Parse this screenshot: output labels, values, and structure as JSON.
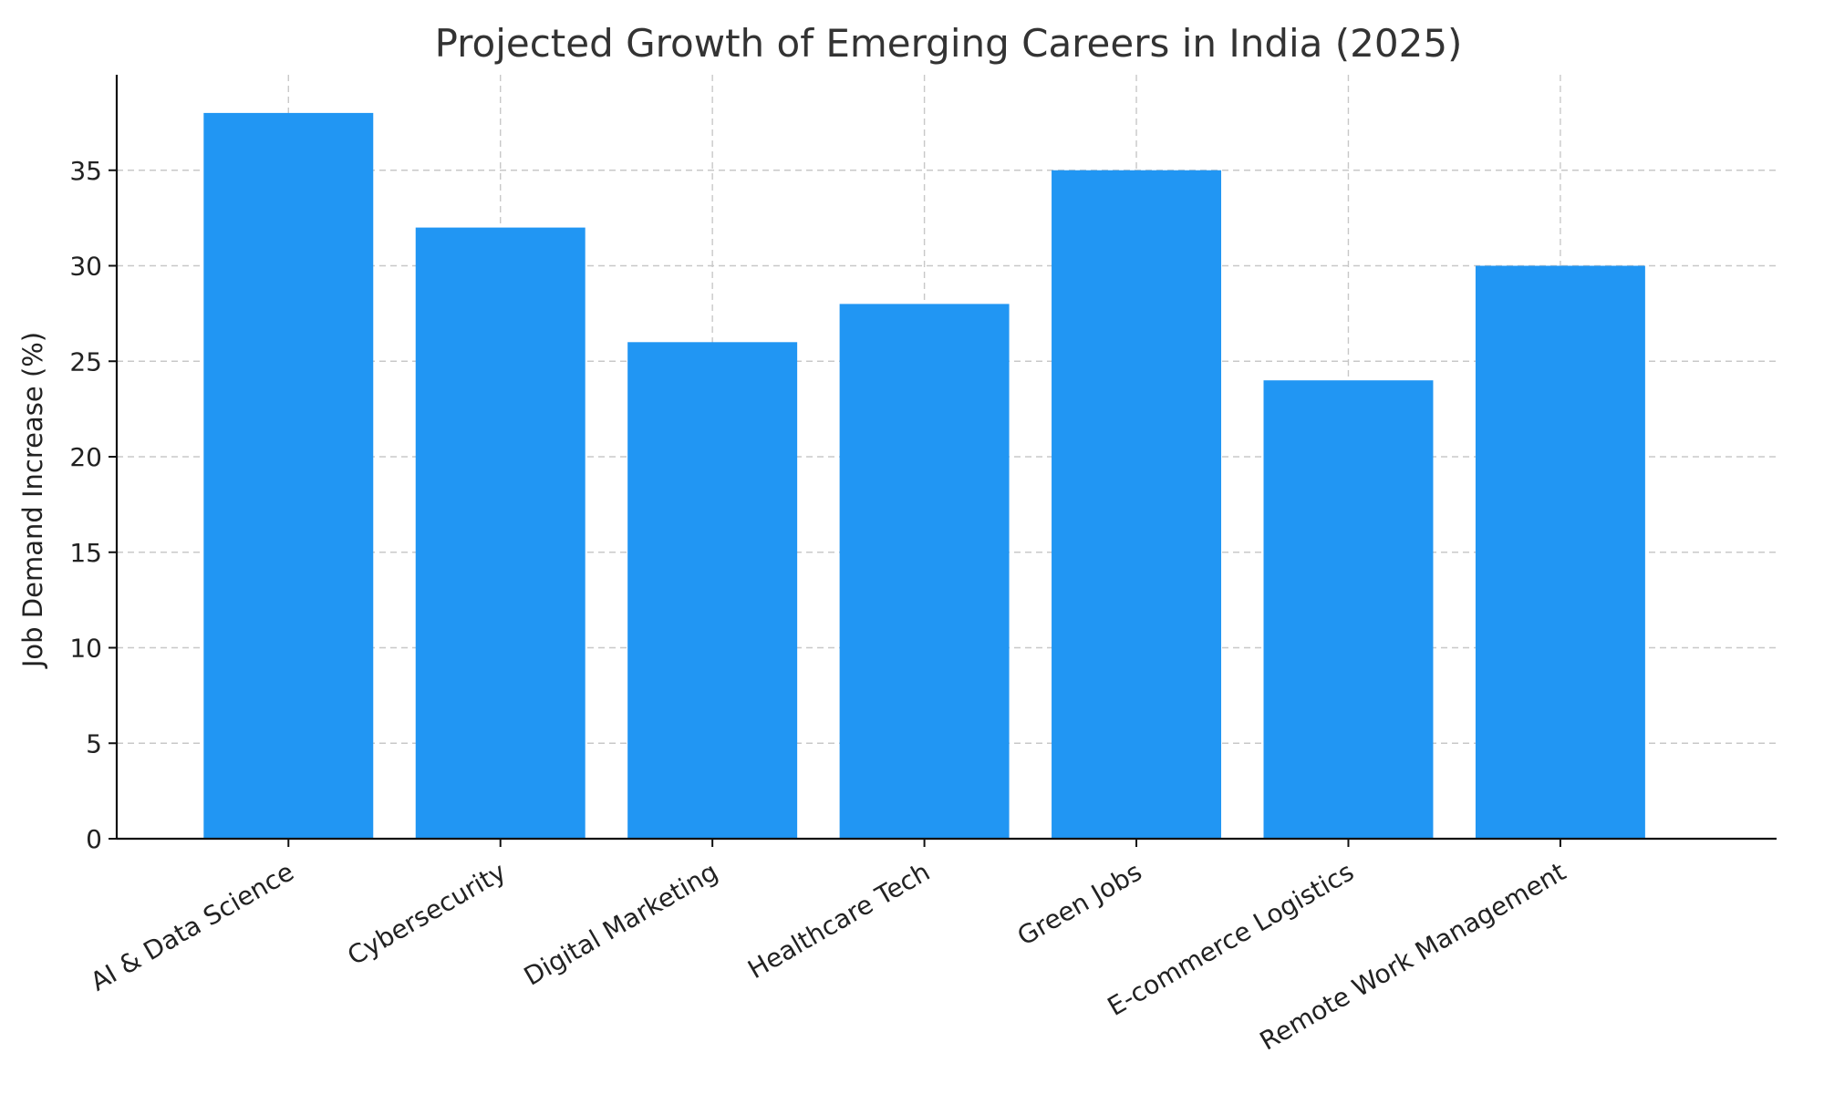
{
  "chart_data": {
    "type": "bar",
    "title": "Projected Growth of Emerging Careers in India (2025)",
    "xlabel": "",
    "ylabel": "Job Demand Increase (%)",
    "categories": [
      "AI & Data Science",
      "Cybersecurity",
      "Digital Marketing",
      "Healthcare Tech",
      "Green Jobs",
      "E-commerce Logistics",
      "Remote Work Management"
    ],
    "values": [
      38,
      32,
      26,
      28,
      35,
      24,
      30
    ],
    "ylim": [
      0,
      40
    ],
    "yticks": [
      0,
      5,
      10,
      15,
      20,
      25,
      30,
      35
    ],
    "ytick_labels": [
      "0",
      "5",
      "10",
      "15",
      "20",
      "25",
      "30",
      "35"
    ],
    "grid": true,
    "bar_color": "#2196F3",
    "x_tick_rotation_deg": 30
  }
}
